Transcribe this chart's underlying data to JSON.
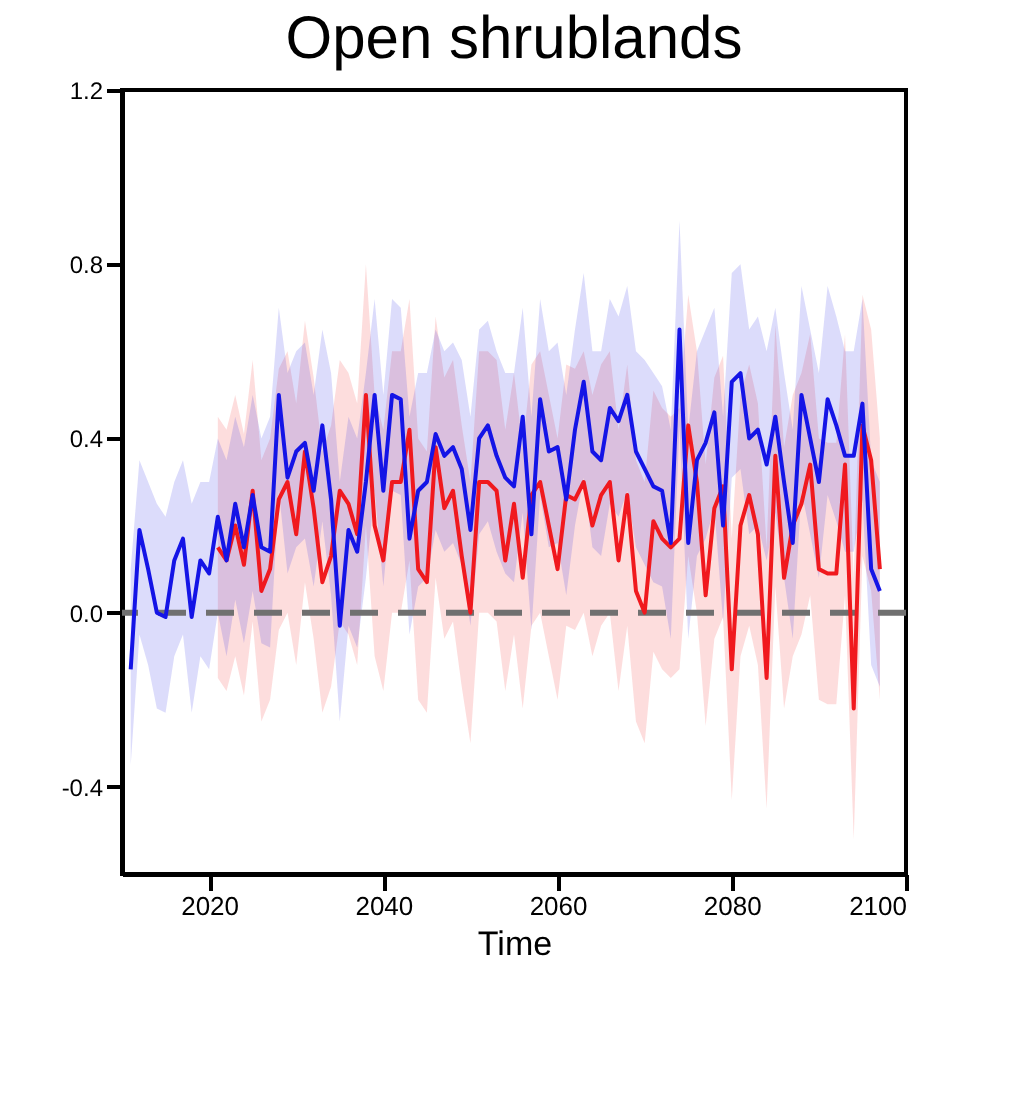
{
  "chart_data": {
    "type": "line",
    "title": "Open shrublands",
    "xlabel": "Time",
    "xlim": [
      2010,
      2100
    ],
    "xticks": [
      2020,
      2040,
      2060,
      2080,
      2100
    ],
    "ylim": [
      -0.6,
      1.2
    ],
    "yticks": [
      {
        "value": -0.4,
        "label": "-0.4"
      },
      {
        "value": 0,
        "label": "0.0"
      },
      {
        "value": 0.4,
        "label": "0.4"
      },
      {
        "value": 0.8,
        "label": "0.8"
      },
      {
        "value": 1.2,
        "label": "1.2"
      }
    ],
    "grid": false,
    "marker": "none",
    "line_style": "solid",
    "ref_lines": [
      {
        "axis": "y",
        "value": 0,
        "color": "#707070",
        "line_style": "dashed"
      }
    ],
    "series": [
      {
        "color": "#f0191e",
        "x": [
          2021,
          2022,
          2023,
          2024,
          2025,
          2026,
          2027,
          2028,
          2029,
          2030,
          2031,
          2032,
          2033,
          2034,
          2035,
          2036,
          2037,
          2038,
          2039,
          2040,
          2041,
          2042,
          2043,
          2044,
          2045,
          2046,
          2047,
          2048,
          2049,
          2050,
          2051,
          2052,
          2053,
          2054,
          2055,
          2056,
          2057,
          2058,
          2059,
          2060,
          2061,
          2062,
          2063,
          2064,
          2065,
          2066,
          2067,
          2068,
          2069,
          2070,
          2071,
          2072,
          2073,
          2074,
          2075,
          2076,
          2077,
          2078,
          2079,
          2080,
          2081,
          2082,
          2083,
          2084,
          2085,
          2086,
          2087,
          2088,
          2089,
          2090,
          2091,
          2092,
          2093,
          2094,
          2095,
          2096,
          2097
        ],
        "values": [
          0.15,
          0.12,
          0.2,
          0.11,
          0.28,
          0.05,
          0.1,
          0.26,
          0.3,
          0.18,
          0.37,
          0.24,
          0.07,
          0.13,
          0.28,
          0.25,
          0.18,
          0.5,
          0.2,
          0.12,
          0.3,
          0.3,
          0.42,
          0.1,
          0.07,
          0.38,
          0.24,
          0.28,
          0.13,
          0.0,
          0.3,
          0.3,
          0.28,
          0.12,
          0.25,
          0.08,
          0.27,
          0.3,
          0.2,
          0.1,
          0.27,
          0.26,
          0.3,
          0.2,
          0.27,
          0.3,
          0.12,
          0.27,
          0.05,
          0.0,
          0.21,
          0.17,
          0.15,
          0.17,
          0.43,
          0.3,
          0.04,
          0.24,
          0.29,
          -0.13,
          0.2,
          0.27,
          0.18,
          -0.15,
          0.36,
          0.08,
          0.2,
          0.25,
          0.34,
          0.1,
          0.09,
          0.09,
          0.34,
          -0.22,
          0.43,
          0.35,
          0.1
        ],
        "upper": [
          0.45,
          0.42,
          0.5,
          0.41,
          0.58,
          0.35,
          0.4,
          0.56,
          0.6,
          0.48,
          0.67,
          0.54,
          0.37,
          0.43,
          0.58,
          0.55,
          0.48,
          0.8,
          0.5,
          0.42,
          0.6,
          0.6,
          0.72,
          0.4,
          0.37,
          0.68,
          0.54,
          0.58,
          0.43,
          0.3,
          0.6,
          0.6,
          0.58,
          0.42,
          0.55,
          0.38,
          0.57,
          0.6,
          0.5,
          0.4,
          0.57,
          0.56,
          0.6,
          0.5,
          0.57,
          0.6,
          0.42,
          0.57,
          0.35,
          0.3,
          0.51,
          0.47,
          0.45,
          0.47,
          0.73,
          0.6,
          0.34,
          0.54,
          0.59,
          0.17,
          0.5,
          0.57,
          0.48,
          0.15,
          0.66,
          0.38,
          0.5,
          0.55,
          0.64,
          0.4,
          0.39,
          0.39,
          0.64,
          0.08,
          0.73,
          0.65,
          0.4
        ],
        "lower": [
          -0.15,
          -0.18,
          -0.1,
          -0.19,
          -0.02,
          -0.25,
          -0.2,
          -0.04,
          0.0,
          -0.12,
          0.07,
          -0.06,
          -0.23,
          -0.17,
          -0.02,
          -0.05,
          -0.12,
          0.2,
          -0.1,
          -0.18,
          0.0,
          0.0,
          0.12,
          -0.2,
          -0.23,
          0.08,
          -0.06,
          -0.02,
          -0.17,
          -0.3,
          0.0,
          0.0,
          -0.02,
          -0.18,
          -0.05,
          -0.22,
          -0.03,
          0.0,
          -0.1,
          -0.2,
          -0.03,
          -0.04,
          0.0,
          -0.1,
          -0.03,
          0.0,
          -0.18,
          -0.03,
          -0.25,
          -0.3,
          -0.09,
          -0.13,
          -0.15,
          -0.13,
          0.13,
          0.0,
          -0.26,
          -0.06,
          -0.01,
          -0.43,
          -0.1,
          -0.03,
          -0.12,
          -0.45,
          0.06,
          -0.22,
          -0.1,
          -0.05,
          0.04,
          -0.2,
          -0.21,
          -0.21,
          0.04,
          -0.52,
          0.13,
          0.05,
          -0.2
        ]
      },
      {
        "color": "#1414e6",
        "x": [
          2011,
          2012,
          2013,
          2014,
          2015,
          2016,
          2017,
          2018,
          2019,
          2020,
          2021,
          2022,
          2023,
          2024,
          2025,
          2026,
          2027,
          2028,
          2029,
          2030,
          2031,
          2032,
          2033,
          2034,
          2035,
          2036,
          2037,
          2038,
          2039,
          2040,
          2041,
          2042,
          2043,
          2044,
          2045,
          2046,
          2047,
          2048,
          2049,
          2050,
          2051,
          2052,
          2053,
          2054,
          2055,
          2056,
          2057,
          2058,
          2059,
          2060,
          2061,
          2062,
          2063,
          2064,
          2065,
          2066,
          2067,
          2068,
          2069,
          2070,
          2071,
          2072,
          2073,
          2074,
          2075,
          2076,
          2077,
          2078,
          2079,
          2080,
          2081,
          2082,
          2083,
          2084,
          2085,
          2086,
          2087,
          2088,
          2089,
          2090,
          2091,
          2092,
          2093,
          2094,
          2095,
          2096,
          2097
        ],
        "values": [
          -0.13,
          0.19,
          0.1,
          0.0,
          -0.01,
          0.12,
          0.17,
          -0.01,
          0.12,
          0.09,
          0.22,
          0.12,
          0.25,
          0.15,
          0.27,
          0.15,
          0.14,
          0.5,
          0.31,
          0.37,
          0.39,
          0.28,
          0.43,
          0.26,
          -0.03,
          0.19,
          0.14,
          0.3,
          0.5,
          0.28,
          0.5,
          0.49,
          0.17,
          0.28,
          0.3,
          0.41,
          0.36,
          0.38,
          0.33,
          0.19,
          0.4,
          0.43,
          0.36,
          0.31,
          0.29,
          0.45,
          0.18,
          0.49,
          0.37,
          0.38,
          0.26,
          0.42,
          0.53,
          0.37,
          0.35,
          0.47,
          0.44,
          0.5,
          0.37,
          0.33,
          0.29,
          0.28,
          0.16,
          0.65,
          0.16,
          0.35,
          0.39,
          0.46,
          0.2,
          0.53,
          0.55,
          0.4,
          0.42,
          0.34,
          0.45,
          0.3,
          0.16,
          0.5,
          0.4,
          0.3,
          0.49,
          0.43,
          0.36,
          0.36,
          0.48,
          0.1,
          0.05
        ],
        "upper": [
          0.1,
          0.35,
          0.3,
          0.25,
          0.22,
          0.3,
          0.35,
          0.25,
          0.3,
          0.3,
          0.4,
          0.35,
          0.45,
          0.38,
          0.5,
          0.4,
          0.45,
          0.7,
          0.55,
          0.6,
          0.62,
          0.5,
          0.65,
          0.55,
          0.3,
          0.45,
          0.4,
          0.55,
          0.72,
          0.5,
          0.72,
          0.7,
          0.45,
          0.55,
          0.55,
          0.65,
          0.6,
          0.62,
          0.58,
          0.45,
          0.65,
          0.67,
          0.6,
          0.55,
          0.55,
          0.7,
          0.45,
          0.72,
          0.6,
          0.62,
          0.5,
          0.65,
          0.78,
          0.6,
          0.6,
          0.72,
          0.68,
          0.75,
          0.6,
          0.58,
          0.55,
          0.52,
          0.42,
          0.9,
          0.42,
          0.6,
          0.65,
          0.7,
          0.45,
          0.78,
          0.8,
          0.65,
          0.68,
          0.6,
          0.7,
          0.55,
          0.42,
          0.75,
          0.65,
          0.55,
          0.75,
          0.68,
          0.6,
          0.6,
          0.72,
          0.35,
          0.3
        ],
        "lower": [
          -0.35,
          -0.05,
          -0.12,
          -0.22,
          -0.23,
          -0.1,
          -0.05,
          -0.23,
          -0.1,
          -0.13,
          0.0,
          -0.1,
          0.03,
          -0.07,
          0.05,
          -0.07,
          -0.08,
          0.28,
          0.09,
          0.15,
          0.17,
          0.06,
          0.21,
          0.04,
          -0.25,
          -0.03,
          -0.08,
          0.08,
          0.28,
          0.06,
          0.28,
          0.27,
          -0.05,
          0.06,
          0.08,
          0.19,
          0.14,
          0.16,
          0.11,
          -0.03,
          0.18,
          0.21,
          0.14,
          0.09,
          0.07,
          0.23,
          -0.04,
          0.27,
          0.15,
          0.16,
          0.04,
          0.2,
          0.31,
          0.15,
          0.13,
          0.25,
          0.22,
          0.28,
          0.15,
          0.11,
          0.07,
          0.06,
          -0.06,
          0.43,
          -0.06,
          0.13,
          0.17,
          0.24,
          -0.02,
          0.31,
          0.33,
          0.18,
          0.2,
          0.12,
          0.23,
          0.08,
          -0.06,
          0.28,
          0.18,
          0.08,
          0.27,
          0.21,
          0.14,
          0.14,
          0.26,
          -0.12,
          -0.17
        ]
      }
    ]
  }
}
